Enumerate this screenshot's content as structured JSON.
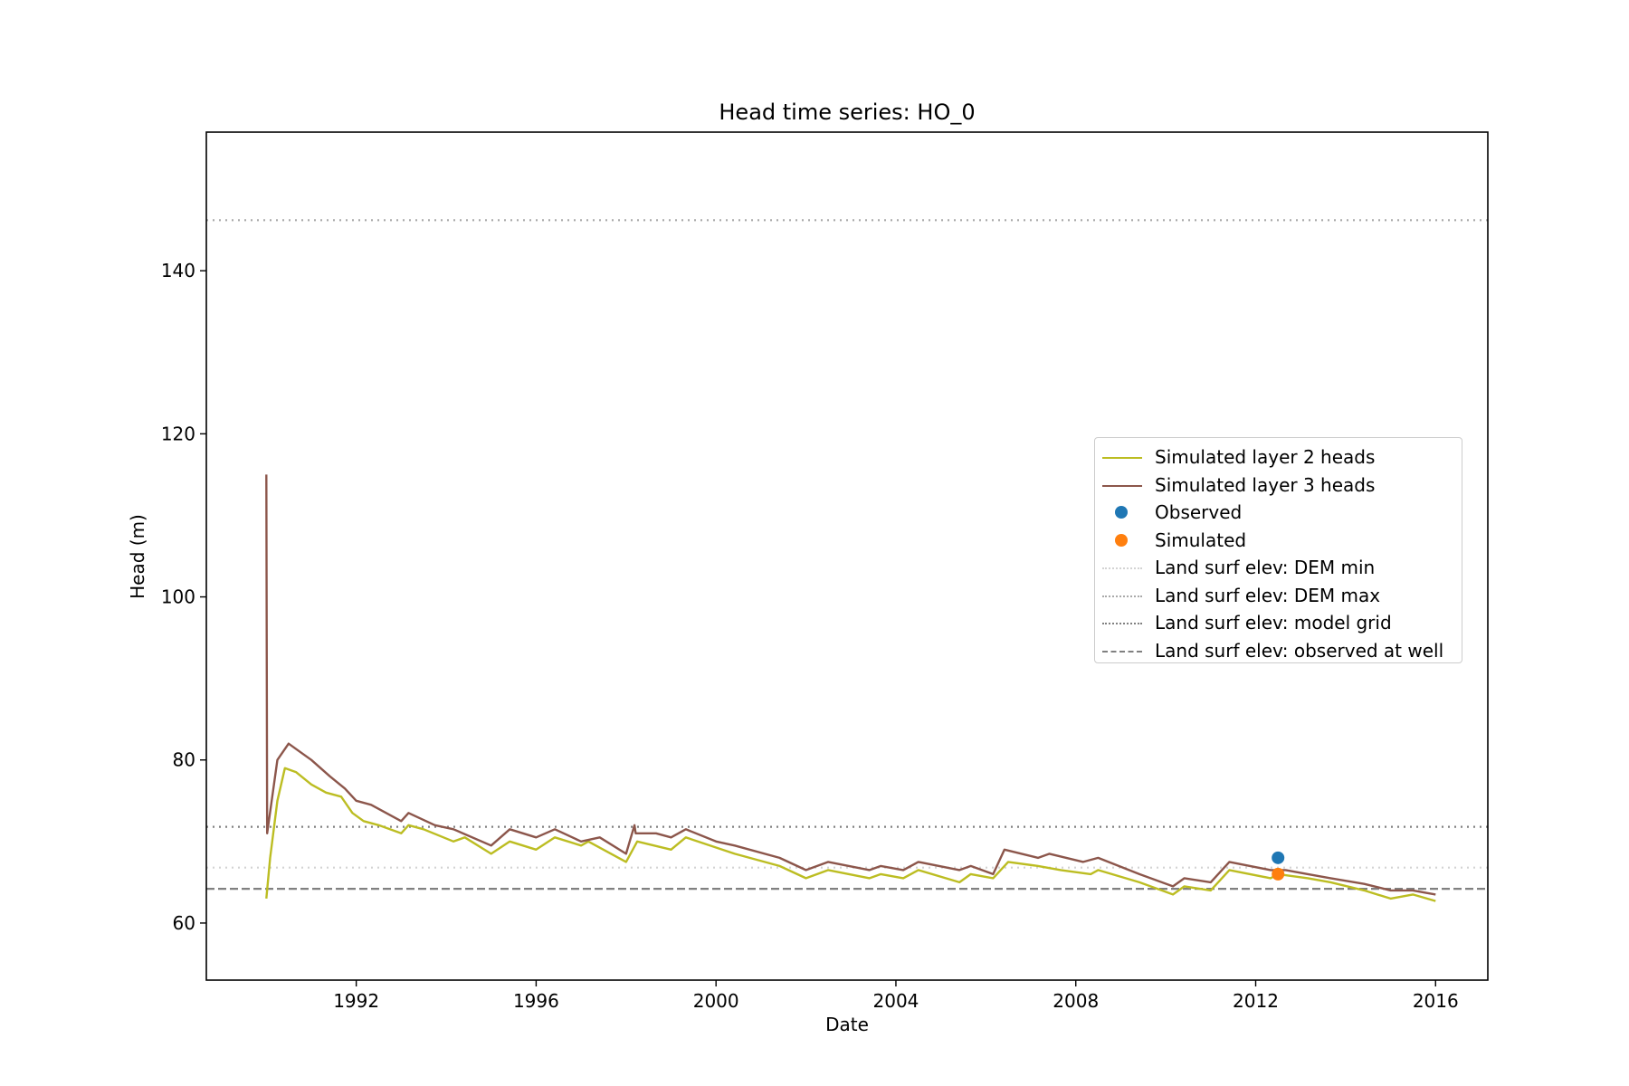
{
  "chart_data": {
    "type": "line",
    "title": "Head time series: HO_0",
    "xlabel": "Date",
    "ylabel": "Head (m)",
    "xlim": [
      "1988-09-01",
      "2017-03-01"
    ],
    "ylim": [
      53,
      157
    ],
    "x_ticks": [
      "1992",
      "1996",
      "2000",
      "2004",
      "2008",
      "2012",
      "2016"
    ],
    "y_ticks": [
      60,
      80,
      100,
      120,
      140
    ],
    "grid": false,
    "legend_position": "center right",
    "series": [
      {
        "name": "Simulated layer 2 heads",
        "color": "#bcbd22",
        "style": "solid",
        "points": [
          [
            "1990-01-01",
            63.0
          ],
          [
            "1990-02-01",
            68.0
          ],
          [
            "1990-04-01",
            75.0
          ],
          [
            "1990-06-01",
            79.0
          ],
          [
            "1990-09-01",
            78.5
          ],
          [
            "1991-01-01",
            77.0
          ],
          [
            "1991-05-01",
            76.0
          ],
          [
            "1991-09-01",
            75.5
          ],
          [
            "1991-12-01",
            73.5
          ],
          [
            "1992-03-01",
            72.5
          ],
          [
            "1992-07-01",
            72.0
          ],
          [
            "1993-01-01",
            71.0
          ],
          [
            "1993-03-01",
            72.0
          ],
          [
            "1993-07-01",
            71.5
          ],
          [
            "1994-03-01",
            70.0
          ],
          [
            "1994-06-01",
            70.5
          ],
          [
            "1995-01-01",
            68.5
          ],
          [
            "1995-06-01",
            70.0
          ],
          [
            "1996-01-01",
            69.0
          ],
          [
            "1996-06-01",
            70.5
          ],
          [
            "1997-01-01",
            69.5
          ],
          [
            "1997-03-01",
            70.0
          ],
          [
            "1998-01-01",
            67.5
          ],
          [
            "1998-04-01",
            70.0
          ],
          [
            "1999-01-01",
            69.0
          ],
          [
            "1999-05-01",
            70.5
          ],
          [
            "2000-06-01",
            68.5
          ],
          [
            "2001-06-01",
            67.0
          ],
          [
            "2002-01-01",
            65.5
          ],
          [
            "2002-07-01",
            66.5
          ],
          [
            "2003-06-01",
            65.5
          ],
          [
            "2003-09-01",
            66.0
          ],
          [
            "2004-03-01",
            65.5
          ],
          [
            "2004-07-01",
            66.5
          ],
          [
            "2005-06-01",
            65.0
          ],
          [
            "2005-09-01",
            66.0
          ],
          [
            "2006-03-01",
            65.5
          ],
          [
            "2006-07-01",
            67.5
          ],
          [
            "2007-03-01",
            67.0
          ],
          [
            "2007-09-01",
            66.5
          ],
          [
            "2008-05-01",
            66.0
          ],
          [
            "2008-07-01",
            66.5
          ],
          [
            "2009-06-01",
            65.0
          ],
          [
            "2010-03-01",
            63.5
          ],
          [
            "2010-06-01",
            64.5
          ],
          [
            "2011-01-01",
            64.0
          ],
          [
            "2011-06-01",
            66.5
          ],
          [
            "2012-05-01",
            65.5
          ],
          [
            "2012-07-01",
            66.0
          ],
          [
            "2013-03-01",
            65.5
          ],
          [
            "2013-09-01",
            65.0
          ],
          [
            "2014-06-01",
            64.0
          ],
          [
            "2015-01-01",
            63.0
          ],
          [
            "2015-07-01",
            63.5
          ],
          [
            "2016-01-01",
            62.7
          ]
        ]
      },
      {
        "name": "Simulated layer 3 heads",
        "color": "#8c564b",
        "style": "solid",
        "points": [
          [
            "1990-01-01",
            115.0
          ],
          [
            "1990-01-08",
            71.0
          ],
          [
            "1990-04-01",
            80.0
          ],
          [
            "1990-07-01",
            82.0
          ],
          [
            "1990-10-01",
            81.0
          ],
          [
            "1991-01-01",
            80.0
          ],
          [
            "1991-06-01",
            78.0
          ],
          [
            "1991-10-01",
            76.5
          ],
          [
            "1992-01-01",
            75.0
          ],
          [
            "1992-05-01",
            74.5
          ],
          [
            "1993-01-01",
            72.5
          ],
          [
            "1993-03-01",
            73.5
          ],
          [
            "1993-10-01",
            72.0
          ],
          [
            "1994-03-01",
            71.5
          ],
          [
            "1995-01-01",
            69.5
          ],
          [
            "1995-06-01",
            71.5
          ],
          [
            "1996-01-01",
            70.5
          ],
          [
            "1996-06-01",
            71.5
          ],
          [
            "1997-01-01",
            70.0
          ],
          [
            "1997-06-01",
            70.5
          ],
          [
            "1998-01-01",
            68.5
          ],
          [
            "1998-03-10",
            72.0
          ],
          [
            "1998-03-20",
            71.0
          ],
          [
            "1998-09-01",
            71.0
          ],
          [
            "1999-01-01",
            70.5
          ],
          [
            "1999-05-01",
            71.5
          ],
          [
            "2000-01-01",
            70.0
          ],
          [
            "2000-06-01",
            69.5
          ],
          [
            "2001-06-01",
            68.0
          ],
          [
            "2002-01-01",
            66.5
          ],
          [
            "2002-07-01",
            67.5
          ],
          [
            "2003-06-01",
            66.5
          ],
          [
            "2003-09-01",
            67.0
          ],
          [
            "2004-03-01",
            66.5
          ],
          [
            "2004-07-01",
            67.5
          ],
          [
            "2005-06-01",
            66.5
          ],
          [
            "2005-09-01",
            67.0
          ],
          [
            "2006-03-01",
            66.0
          ],
          [
            "2006-06-01",
            69.0
          ],
          [
            "2007-03-01",
            68.0
          ],
          [
            "2007-06-01",
            68.5
          ],
          [
            "2008-03-01",
            67.5
          ],
          [
            "2008-07-01",
            68.0
          ],
          [
            "2009-06-01",
            66.0
          ],
          [
            "2010-03-01",
            64.5
          ],
          [
            "2010-06-01",
            65.5
          ],
          [
            "2011-01-01",
            65.0
          ],
          [
            "2011-06-01",
            67.5
          ],
          [
            "2012-05-01",
            66.5
          ],
          [
            "2012-09-01",
            66.5
          ],
          [
            "2013-03-01",
            66.0
          ],
          [
            "2013-09-01",
            65.5
          ],
          [
            "2014-06-01",
            64.8
          ],
          [
            "2015-01-01",
            64.0
          ],
          [
            "2015-07-01",
            64.0
          ],
          [
            "2016-01-01",
            63.5
          ]
        ]
      }
    ],
    "points": [
      {
        "name": "Observed",
        "color": "#1f77b4",
        "x": "2012-07-01",
        "y": 68.0
      },
      {
        "name": "Simulated",
        "color": "#ff7f0e",
        "x": "2012-07-01",
        "y": 66.0
      }
    ],
    "reference_lines": [
      {
        "name": "Land surf elev: DEM min",
        "y": 66.8,
        "color": "#d3d3d3",
        "style": "dotted"
      },
      {
        "name": "Land surf elev: DEM max",
        "y": 146.2,
        "color": "#a9a9a9",
        "style": "dotted"
      },
      {
        "name": "Land surf elev: model grid",
        "y": 71.8,
        "color": "#808080",
        "style": "dotted"
      },
      {
        "name": "Land surf elev: observed at well",
        "y": 64.2,
        "color": "#808080",
        "style": "dashed"
      }
    ]
  }
}
